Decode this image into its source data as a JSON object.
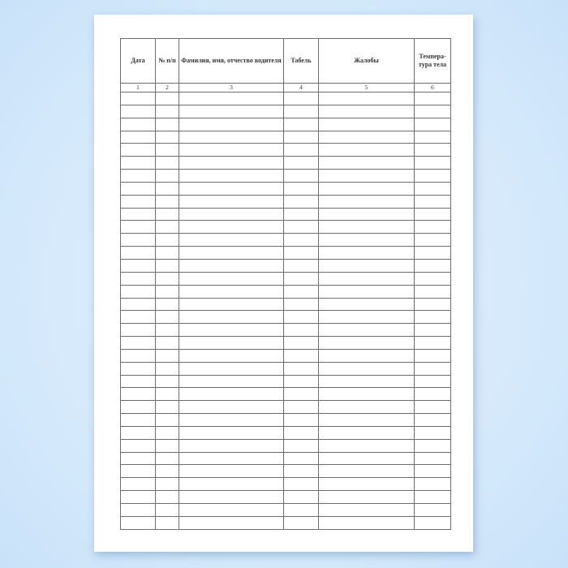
{
  "table": {
    "headers": [
      "Дата",
      "№ п/п",
      "Фамилия, имя, отчество водителя",
      "Табель",
      "Жалобы",
      "Темпера-тура тела"
    ],
    "column_numbers": [
      "1",
      "2",
      "3",
      "4",
      "5",
      "6"
    ],
    "empty_rows": 34
  }
}
